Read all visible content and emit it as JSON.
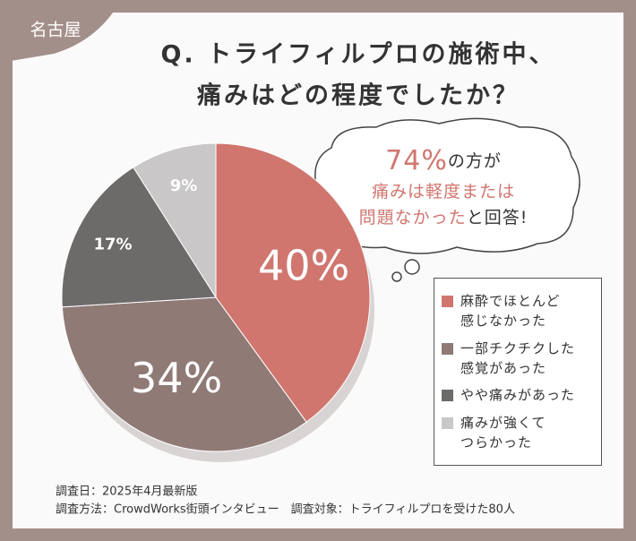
{
  "badge": "名古屋",
  "chart_data": {
    "type": "pie",
    "title": [
      "Q. トライフィルプロの施術中、",
      "痛みはどの程度でしたか？"
    ],
    "series": [
      {
        "name": "麻酔でほとんど\n感じなかった",
        "color": "#d0766f",
        "values": [
          40
        ],
        "value_labels": [
          "40%"
        ]
      },
      {
        "name": "一部チクチクした\n感覚があった",
        "color": "#8f7a76",
        "values": [
          34
        ],
        "value_labels": [
          "34%"
        ]
      },
      {
        "name": "やや痛みがあった",
        "color": "#6d6a6a",
        "values": [
          17
        ],
        "value_labels": [
          "17%"
        ]
      },
      {
        "name": "痛みが強くて\nつらかった",
        "color": "#c9c7c7",
        "values": [
          9
        ],
        "value_labels": [
          "9%"
        ]
      }
    ],
    "accent_color": "#d0766f"
  },
  "callout": {
    "lines": [
      [
        {
          "text": "74%",
          "accent": true
        },
        {
          "text": "の方が",
          "accent": false
        }
      ],
      [
        {
          "text": "痛みは軽度または",
          "accent": true
        }
      ],
      [
        {
          "text": "問題なかった",
          "accent": true
        },
        {
          "text": "と回答!",
          "accent": false
        }
      ]
    ]
  },
  "footer": [
    "調査日：2025年4月最新版",
    "調査方法：CrowdWorks街頭インタビュー　調査対象：トライフィルプロを受けた80人"
  ]
}
